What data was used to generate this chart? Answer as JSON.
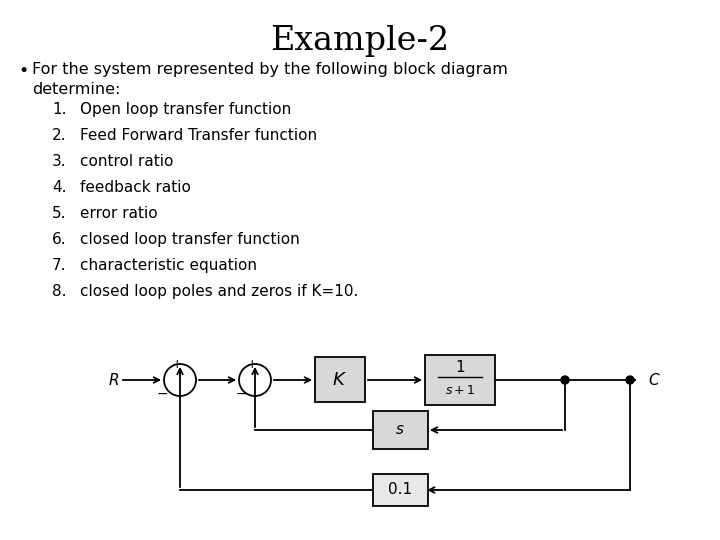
{
  "title": "Example-2",
  "title_fontsize": 24,
  "bullet_fontsize": 11.5,
  "item_fontsize": 11,
  "bg_color": "#ffffff",
  "text_color": "#000000",
  "bullet_line1": "For the system represented by the following block diagram",
  "bullet_line2": "determine:",
  "items": [
    "Open loop transfer function",
    "Feed Forward Transfer function",
    "control ratio",
    "feedback ratio",
    "error ratio",
    "closed loop transfer function",
    "characteristic equation",
    "closed loop poles and zeros if K=10."
  ]
}
